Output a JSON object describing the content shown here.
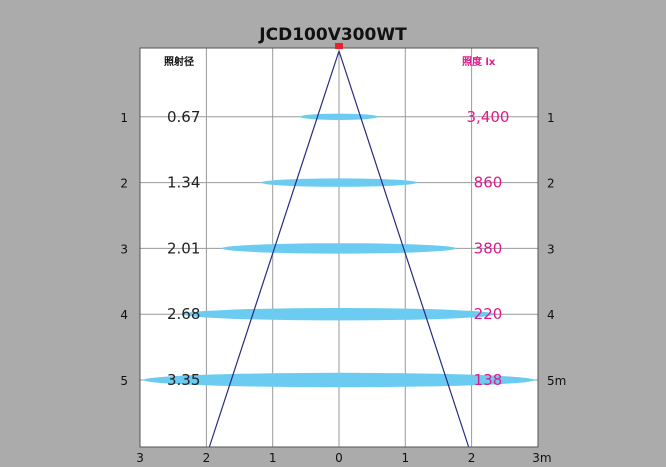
{
  "title": "JCD100V300WT",
  "header_left": "照射径",
  "header_right": "照度 lx",
  "colors": {
    "background": "#ababab",
    "plot": "#ffffff",
    "grid": "#9a9a9a",
    "beam": "#2a2a80",
    "ellipse": "#6ccbf0",
    "lux": "#e0198c",
    "source": "#e8202a"
  },
  "chart_data": {
    "type": "beam-spread",
    "x_range": [
      -3,
      3
    ],
    "y_range": [
      0,
      6
    ],
    "rows": [
      {
        "distance": 1,
        "diameter": "0.67",
        "illuminance": "3,400"
      },
      {
        "distance": 2,
        "diameter": "1.34",
        "illuminance": "860"
      },
      {
        "distance": 3,
        "diameter": "2.01",
        "illuminance": "380"
      },
      {
        "distance": 4,
        "diameter": "2.68",
        "illuminance": "220"
      },
      {
        "distance": 5,
        "diameter": "3.35",
        "illuminance": "138"
      }
    ],
    "left_ticks": [
      "1",
      "2",
      "3",
      "4",
      "5"
    ],
    "right_ticks": [
      "1",
      "2",
      "3",
      "4",
      "5m"
    ],
    "x_ticks": [
      {
        "value": -3,
        "label": "3"
      },
      {
        "value": -2,
        "label": "2"
      },
      {
        "value": -1,
        "label": "1"
      },
      {
        "value": 0,
        "label": "0"
      },
      {
        "value": 1,
        "label": "1"
      },
      {
        "value": 2,
        "label": "2"
      },
      {
        "value": 3,
        "label": "3m"
      }
    ]
  }
}
